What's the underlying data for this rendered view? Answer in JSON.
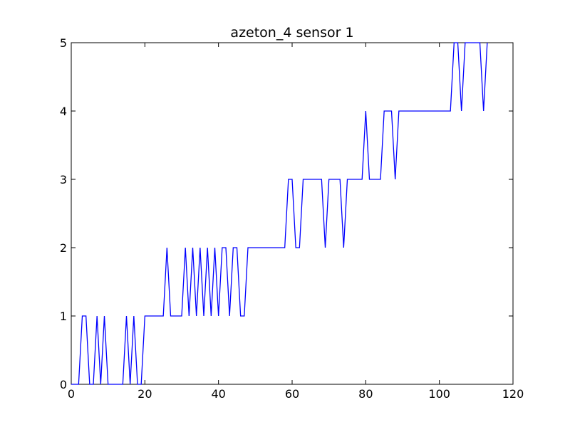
{
  "chart_data": {
    "type": "line",
    "title": "azeton_4 sensor 1",
    "xlabel": "",
    "ylabel": "",
    "xlim": [
      0,
      120
    ],
    "ylim": [
      0,
      5
    ],
    "x_ticks": [
      0,
      20,
      40,
      60,
      80,
      100,
      120
    ],
    "y_ticks": [
      0,
      1,
      2,
      3,
      4,
      5
    ],
    "x_tick_labels": [
      "0",
      "20",
      "40",
      "60",
      "80",
      "100",
      "120"
    ],
    "y_tick_labels": [
      "0",
      "1",
      "2",
      "3",
      "4",
      "5"
    ],
    "grid": false,
    "legend": null,
    "series": [
      {
        "name": "sensor 1",
        "color": "#0000ff",
        "x": [
          0,
          1,
          2,
          3,
          4,
          5,
          6,
          7,
          8,
          9,
          10,
          11,
          12,
          13,
          14,
          15,
          16,
          17,
          18,
          19,
          20,
          21,
          22,
          23,
          24,
          25,
          26,
          27,
          28,
          29,
          30,
          31,
          32,
          33,
          34,
          35,
          36,
          37,
          38,
          39,
          40,
          41,
          42,
          43,
          44,
          45,
          46,
          47,
          48,
          49,
          50,
          51,
          52,
          53,
          54,
          55,
          56,
          57,
          58,
          59,
          60,
          61,
          62,
          63,
          64,
          65,
          66,
          67,
          68,
          69,
          70,
          71,
          72,
          73,
          74,
          75,
          76,
          77,
          78,
          79,
          80,
          81,
          82,
          83,
          84,
          85,
          86,
          87,
          88,
          89,
          90,
          91,
          92,
          93,
          94,
          95,
          96,
          97,
          98,
          99,
          100,
          101,
          102,
          103,
          104,
          105,
          106,
          107,
          108,
          109,
          110,
          111,
          112,
          113
        ],
        "y": [
          0,
          0,
          0,
          1,
          1,
          0,
          0,
          1,
          0,
          1,
          0,
          0,
          0,
          0,
          0,
          1,
          0,
          1,
          0,
          0,
          1,
          1,
          1,
          1,
          1,
          1,
          2,
          1,
          1,
          1,
          1,
          2,
          1,
          2,
          1,
          2,
          1,
          2,
          1,
          2,
          1,
          2,
          2,
          1,
          2,
          2,
          1,
          1,
          2,
          2,
          2,
          2,
          2,
          2,
          2,
          2,
          2,
          2,
          2,
          3,
          3,
          2,
          2,
          3,
          3,
          3,
          3,
          3,
          3,
          2,
          3,
          3,
          3,
          3,
          2,
          3,
          3,
          3,
          3,
          3,
          4,
          3,
          3,
          3,
          3,
          4,
          4,
          4,
          3,
          4,
          4,
          4,
          4,
          4,
          4,
          4,
          4,
          4,
          4,
          4,
          4,
          4,
          4,
          4,
          5,
          5,
          4,
          5,
          5,
          5,
          5,
          5,
          4,
          5
        ]
      }
    ]
  }
}
